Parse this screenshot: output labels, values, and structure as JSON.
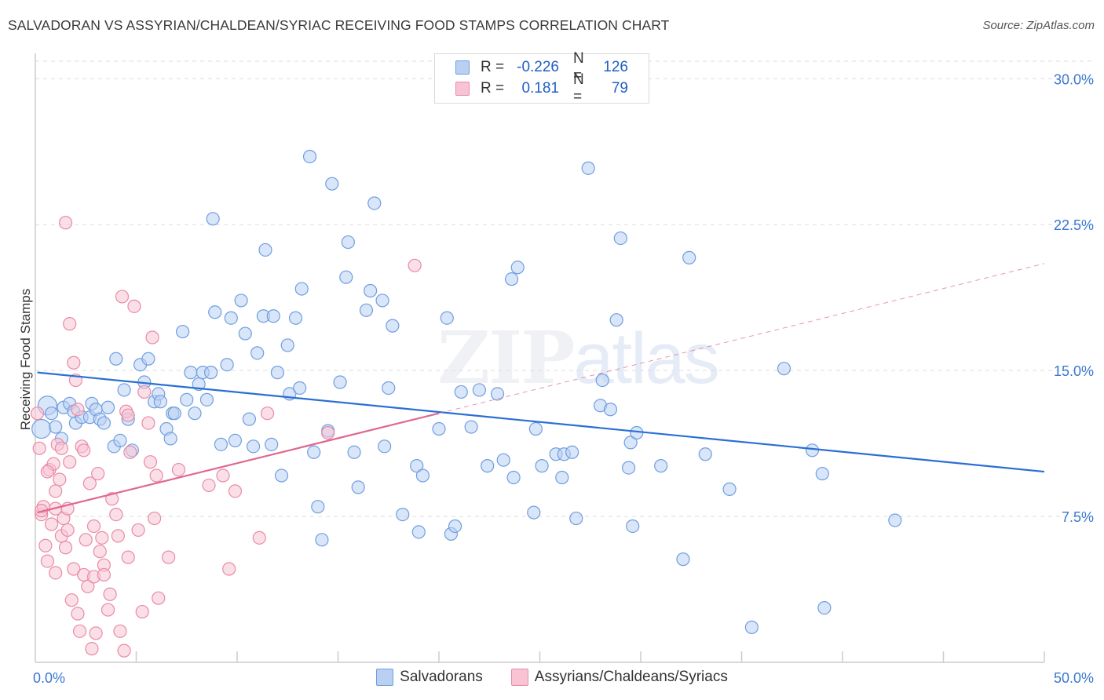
{
  "header": {
    "title": "SALVADORAN VS ASSYRIAN/CHALDEAN/SYRIAC RECEIVING FOOD STAMPS CORRELATION CHART",
    "source": "Source: ZipAtlas.com"
  },
  "watermark": {
    "zip": "ZIP",
    "atlas": "atlas"
  },
  "legend": {
    "rows": [
      {
        "r_label": "R =",
        "r_value": "-0.226",
        "n_label": "N =",
        "n_value": "126"
      },
      {
        "r_label": "R =",
        "r_value": "0.181",
        "n_label": "N =",
        "n_value": "79"
      }
    ]
  },
  "colors": {
    "blue_fill": "#b9d0f2",
    "blue_stroke": "#6f9fe0",
    "blue_line": "#2a6fd4",
    "pink_fill": "#f8c4d4",
    "pink_stroke": "#e98aa8",
    "pink_line": "#e06890",
    "grid": "#dddddd",
    "tick_text": "#3b78d0"
  },
  "chart_data": {
    "type": "scatter",
    "title": "SALVADORAN VS ASSYRIAN/CHALDEAN/SYRIAC RECEIVING FOOD STAMPS CORRELATION CHART",
    "xlabel": "",
    "ylabel": "Receiving Food Stamps",
    "xlim": [
      0,
      50
    ],
    "ylim": [
      0,
      30.9
    ],
    "x_tick_labels": [
      "0.0%",
      "50.0%"
    ],
    "y_ticks": [
      7.5,
      15.0,
      22.5,
      30.0
    ],
    "y_tick_labels": [
      "7.5%",
      "15.0%",
      "22.5%",
      "30.0%"
    ],
    "series": [
      {
        "name": "Salvadorans",
        "color": "blue",
        "trend": {
          "x0": 0.1,
          "y0": 14.9,
          "x1": 50.0,
          "y1": 9.8,
          "dashed_to": null
        },
        "points": [
          [
            0.3,
            12.0
          ],
          [
            0.6,
            13.2
          ],
          [
            0.8,
            12.8
          ],
          [
            1.0,
            12.1
          ],
          [
            1.3,
            11.5
          ],
          [
            1.4,
            13.1
          ],
          [
            1.7,
            13.3
          ],
          [
            1.9,
            12.9
          ],
          [
            2.0,
            12.3
          ],
          [
            2.3,
            12.6
          ],
          [
            2.7,
            12.6
          ],
          [
            2.8,
            13.3
          ],
          [
            3.0,
            13.0
          ],
          [
            3.2,
            12.5
          ],
          [
            3.4,
            12.3
          ],
          [
            3.6,
            13.1
          ],
          [
            3.9,
            11.1
          ],
          [
            4.0,
            15.6
          ],
          [
            4.2,
            11.4
          ],
          [
            4.4,
            14.0
          ],
          [
            4.6,
            12.5
          ],
          [
            4.8,
            10.9
          ],
          [
            5.2,
            15.3
          ],
          [
            5.4,
            14.4
          ],
          [
            5.6,
            15.6
          ],
          [
            5.9,
            13.4
          ],
          [
            6.1,
            13.8
          ],
          [
            6.2,
            13.4
          ],
          [
            6.5,
            12.0
          ],
          [
            6.7,
            11.5
          ],
          [
            6.8,
            12.8
          ],
          [
            6.9,
            12.8
          ],
          [
            7.3,
            17.0
          ],
          [
            7.5,
            13.5
          ],
          [
            7.7,
            14.9
          ],
          [
            7.9,
            12.8
          ],
          [
            8.1,
            14.3
          ],
          [
            8.3,
            14.9
          ],
          [
            8.5,
            13.5
          ],
          [
            8.7,
            14.9
          ],
          [
            8.9,
            18.0
          ],
          [
            8.8,
            22.8
          ],
          [
            9.2,
            11.2
          ],
          [
            9.5,
            15.3
          ],
          [
            9.7,
            17.7
          ],
          [
            9.9,
            11.4
          ],
          [
            10.2,
            18.6
          ],
          [
            10.4,
            16.9
          ],
          [
            10.6,
            12.5
          ],
          [
            10.8,
            11.1
          ],
          [
            11.0,
            15.9
          ],
          [
            11.3,
            17.8
          ],
          [
            11.4,
            21.2
          ],
          [
            11.7,
            11.2
          ],
          [
            11.8,
            17.8
          ],
          [
            12.0,
            14.9
          ],
          [
            12.2,
            9.6
          ],
          [
            12.5,
            16.3
          ],
          [
            12.6,
            13.8
          ],
          [
            12.9,
            17.7
          ],
          [
            13.1,
            14.1
          ],
          [
            13.2,
            19.2
          ],
          [
            13.6,
            26.0
          ],
          [
            13.8,
            10.8
          ],
          [
            14.0,
            8.0
          ],
          [
            14.2,
            6.3
          ],
          [
            14.5,
            11.9
          ],
          [
            14.7,
            24.6
          ],
          [
            15.1,
            14.4
          ],
          [
            15.4,
            19.8
          ],
          [
            15.5,
            21.6
          ],
          [
            15.8,
            10.8
          ],
          [
            16.0,
            9.0
          ],
          [
            16.4,
            18.1
          ],
          [
            16.6,
            19.1
          ],
          [
            16.8,
            23.6
          ],
          [
            17.2,
            18.6
          ],
          [
            17.3,
            11.1
          ],
          [
            17.5,
            14.1
          ],
          [
            17.7,
            17.3
          ],
          [
            18.2,
            7.6
          ],
          [
            18.9,
            10.1
          ],
          [
            19.0,
            6.7
          ],
          [
            19.2,
            9.6
          ],
          [
            20.0,
            12.0
          ],
          [
            20.4,
            17.7
          ],
          [
            20.6,
            6.6
          ],
          [
            20.8,
            7.0
          ],
          [
            21.1,
            13.9
          ],
          [
            21.6,
            12.1
          ],
          [
            22.0,
            14.0
          ],
          [
            22.4,
            10.1
          ],
          [
            22.9,
            13.8
          ],
          [
            23.2,
            10.4
          ],
          [
            23.6,
            19.7
          ],
          [
            23.7,
            9.5
          ],
          [
            23.9,
            20.3
          ],
          [
            24.7,
            7.7
          ],
          [
            24.8,
            12.0
          ],
          [
            25.1,
            10.1
          ],
          [
            25.8,
            10.7
          ],
          [
            26.1,
            9.5
          ],
          [
            26.2,
            10.7
          ],
          [
            26.6,
            10.8
          ],
          [
            26.8,
            7.4
          ],
          [
            27.4,
            25.4
          ],
          [
            28.0,
            13.2
          ],
          [
            28.1,
            14.5
          ],
          [
            28.5,
            13.0
          ],
          [
            28.8,
            17.6
          ],
          [
            29.0,
            21.8
          ],
          [
            29.4,
            10.0
          ],
          [
            29.5,
            11.3
          ],
          [
            29.6,
            7.0
          ],
          [
            29.8,
            11.8
          ],
          [
            31.0,
            10.1
          ],
          [
            32.1,
            5.3
          ],
          [
            32.4,
            20.8
          ],
          [
            33.2,
            10.7
          ],
          [
            34.4,
            8.9
          ],
          [
            35.5,
            1.8
          ],
          [
            37.1,
            15.1
          ],
          [
            38.5,
            10.9
          ],
          [
            39.0,
            9.7
          ],
          [
            39.1,
            2.8
          ],
          [
            42.6,
            7.3
          ]
        ]
      },
      {
        "name": "Assyrians/Chaldeans/Syriacs",
        "color": "pink",
        "trend": {
          "x0": 0.1,
          "y0": 7.7,
          "x1": 20.0,
          "y1": 12.8,
          "dashed_to": [
            50.0,
            20.5
          ]
        },
        "points": [
          [
            0.1,
            12.8
          ],
          [
            0.2,
            11.0
          ],
          [
            0.3,
            7.6
          ],
          [
            0.4,
            8.0
          ],
          [
            0.5,
            6.0
          ],
          [
            0.6,
            5.2
          ],
          [
            0.7,
            9.9
          ],
          [
            0.8,
            7.1
          ],
          [
            0.9,
            10.2
          ],
          [
            1.0,
            8.8
          ],
          [
            1.0,
            4.6
          ],
          [
            1.1,
            11.2
          ],
          [
            1.2,
            9.4
          ],
          [
            1.3,
            6.5
          ],
          [
            1.4,
            7.4
          ],
          [
            1.5,
            5.9
          ],
          [
            1.6,
            6.8
          ],
          [
            1.7,
            10.3
          ],
          [
            1.8,
            3.2
          ],
          [
            1.9,
            4.8
          ],
          [
            1.5,
            22.6
          ],
          [
            1.7,
            17.4
          ],
          [
            1.9,
            15.4
          ],
          [
            2.0,
            14.5
          ],
          [
            2.1,
            2.5
          ],
          [
            2.2,
            1.6
          ],
          [
            2.3,
            11.1
          ],
          [
            2.4,
            4.5
          ],
          [
            2.5,
            6.3
          ],
          [
            2.6,
            3.9
          ],
          [
            2.7,
            9.2
          ],
          [
            2.8,
            0.7
          ],
          [
            2.9,
            7.0
          ],
          [
            3.0,
            1.5
          ],
          [
            3.1,
            9.7
          ],
          [
            3.2,
            5.7
          ],
          [
            3.3,
            6.4
          ],
          [
            3.4,
            5.0
          ],
          [
            3.6,
            2.7
          ],
          [
            3.7,
            3.5
          ],
          [
            3.8,
            8.4
          ],
          [
            4.0,
            7.6
          ],
          [
            4.1,
            6.5
          ],
          [
            4.2,
            1.6
          ],
          [
            4.3,
            18.8
          ],
          [
            4.4,
            0.6
          ],
          [
            4.5,
            12.9
          ],
          [
            4.6,
            5.4
          ],
          [
            4.7,
            10.8
          ],
          [
            4.9,
            18.3
          ],
          [
            5.1,
            6.8
          ],
          [
            5.3,
            2.6
          ],
          [
            5.4,
            13.9
          ],
          [
            5.6,
            12.3
          ],
          [
            5.7,
            10.3
          ],
          [
            5.8,
            16.7
          ],
          [
            5.9,
            7.4
          ],
          [
            6.0,
            9.6
          ],
          [
            6.1,
            3.3
          ],
          [
            6.6,
            5.4
          ],
          [
            7.1,
            9.9
          ],
          [
            8.6,
            9.1
          ],
          [
            9.3,
            9.6
          ],
          [
            9.6,
            4.8
          ],
          [
            9.9,
            8.8
          ],
          [
            11.1,
            6.4
          ],
          [
            11.5,
            12.8
          ],
          [
            14.5,
            11.8
          ],
          [
            18.8,
            20.4
          ],
          [
            0.3,
            7.8
          ],
          [
            0.6,
            9.8
          ],
          [
            1.0,
            7.9
          ],
          [
            1.3,
            11.0
          ],
          [
            1.6,
            7.9
          ],
          [
            2.1,
            13.0
          ],
          [
            2.4,
            10.9
          ],
          [
            2.9,
            4.4
          ],
          [
            3.4,
            4.5
          ],
          [
            4.6,
            12.7
          ]
        ]
      }
    ]
  }
}
